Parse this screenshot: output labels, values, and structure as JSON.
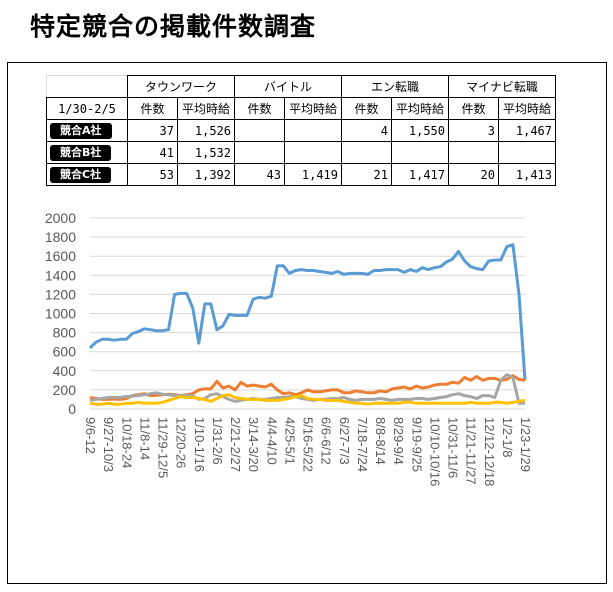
{
  "page_title": "特定競合の掲載件数調査",
  "table": {
    "period": "1/30-2/5",
    "media": [
      "タウンワーク",
      "バイトル",
      "エン転職",
      "マイナビ転職"
    ],
    "subheaders": [
      "件数",
      "平均時給"
    ],
    "rows": [
      {
        "company": "競合A社",
        "cells": [
          "37",
          "1,526",
          "",
          "",
          "4",
          "1,550",
          "3",
          "1,467"
        ]
      },
      {
        "company": "競合B社",
        "cells": [
          "41",
          "1,532",
          "",
          "",
          "",
          "",
          "",
          ""
        ]
      },
      {
        "company": "競合C社",
        "cells": [
          "53",
          "1,392",
          "43",
          "1,419",
          "21",
          "1,417",
          "20",
          "1,413"
        ]
      }
    ]
  },
  "chart_data": {
    "type": "line",
    "title": "",
    "xlabel": "",
    "ylabel": "",
    "ylim": [
      0,
      2000
    ],
    "yticks": [
      0,
      200,
      400,
      600,
      800,
      1000,
      1200,
      1400,
      1600,
      1800,
      2000
    ],
    "grid": true,
    "legend": "none",
    "x_tick_labels": [
      "9/6-12",
      "9/27-10/3",
      "10/18-24",
      "11/8-14",
      "11/29-12/5",
      "12/20-26",
      "1/10-1/16",
      "1/31-2/6",
      "2/21-2/27",
      "3/14-3/20",
      "4/4-4/10",
      "4/25-5/1",
      "5/16-5/22",
      "6/6-6/12",
      "6/27-7/3",
      "7/18-7/24",
      "8/8-8/14",
      "8/29-9/4",
      "9/19-9/25",
      "10/10-10/16",
      "10/31-11/6",
      "11/21-11/27",
      "12/12-12/18",
      "1/2-1/8",
      "1/23-1/29"
    ],
    "series": [
      {
        "color": "#5b9bd5",
        "values": [
          640,
          700,
          730,
          730,
          720,
          730,
          730,
          790,
          810,
          840,
          830,
          820,
          820,
          830,
          1200,
          1210,
          1210,
          1060,
          690,
          1100,
          1100,
          830,
          870,
          990,
          980,
          980,
          980,
          1150,
          1170,
          1160,
          1180,
          1500,
          1500,
          1420,
          1450,
          1460,
          1450,
          1450,
          1440,
          1430,
          1420,
          1440,
          1410,
          1420,
          1420,
          1420,
          1410,
          1450,
          1450,
          1460,
          1460,
          1460,
          1430,
          1460,
          1440,
          1480,
          1460,
          1480,
          1490,
          1540,
          1570,
          1650,
          1550,
          1490,
          1470,
          1460,
          1550,
          1560,
          1560,
          1700,
          1720,
          1200,
          300
        ]
      },
      {
        "color": "#ed7d31",
        "values": [
          120,
          110,
          100,
          100,
          105,
          100,
          110,
          140,
          150,
          160,
          140,
          145,
          150,
          155,
          150,
          140,
          150,
          160,
          200,
          210,
          210,
          290,
          220,
          240,
          200,
          280,
          240,
          250,
          240,
          230,
          260,
          200,
          160,
          170,
          150,
          170,
          200,
          180,
          180,
          190,
          200,
          200,
          170,
          170,
          190,
          180,
          170,
          170,
          190,
          180,
          210,
          220,
          230,
          210,
          240,
          220,
          230,
          250,
          260,
          260,
          280,
          270,
          330,
          300,
          340,
          300,
          320,
          320,
          300,
          310,
          350,
          310,
          300
        ]
      },
      {
        "color": "#a5a5a5",
        "values": [
          90,
          100,
          110,
          120,
          120,
          120,
          130,
          135,
          140,
          150,
          160,
          170,
          155,
          150,
          140,
          140,
          145,
          140,
          100,
          110,
          150,
          160,
          130,
          100,
          80,
          90,
          100,
          110,
          100,
          100,
          110,
          120,
          120,
          130,
          130,
          110,
          100,
          90,
          100,
          100,
          110,
          110,
          120,
          100,
          90,
          100,
          100,
          100,
          110,
          100,
          90,
          100,
          100,
          100,
          110,
          110,
          100,
          110,
          120,
          130,
          150,
          160,
          140,
          130,
          110,
          140,
          140,
          120,
          300,
          360,
          330,
          60,
          60
        ]
      },
      {
        "color": "#ffc000",
        "values": [
          60,
          50,
          50,
          60,
          50,
          50,
          60,
          60,
          70,
          60,
          60,
          60,
          70,
          90,
          110,
          130,
          120,
          120,
          110,
          100,
          80,
          110,
          140,
          150,
          120,
          110,
          100,
          100,
          100,
          90,
          90,
          90,
          100,
          110,
          130,
          140,
          110,
          100,
          100,
          90,
          90,
          90,
          80,
          70,
          60,
          60,
          50,
          60,
          60,
          60,
          60,
          60,
          70,
          70,
          60,
          60,
          60,
          60,
          60,
          60,
          60,
          60,
          60,
          70,
          60,
          60,
          60,
          70,
          70,
          60,
          70,
          80,
          90
        ]
      }
    ]
  }
}
